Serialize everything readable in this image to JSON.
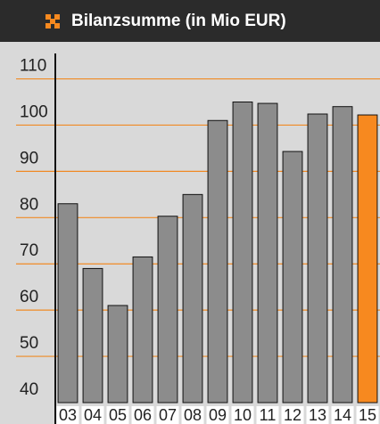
{
  "chart_data": {
    "type": "bar",
    "title": "Bilanzsumme (in Mio EUR)",
    "categories": [
      "03",
      "04",
      "05",
      "06",
      "07",
      "08",
      "09",
      "10",
      "11",
      "12",
      "13",
      "14",
      "15"
    ],
    "values": [
      83,
      69,
      61,
      71.5,
      80.3,
      85,
      101,
      105,
      104.7,
      94.3,
      102.4,
      104,
      102.2
    ],
    "colors": [
      "#8c8c8c",
      "#8c8c8c",
      "#8c8c8c",
      "#8c8c8c",
      "#8c8c8c",
      "#8c8c8c",
      "#8c8c8c",
      "#8c8c8c",
      "#8c8c8c",
      "#8c8c8c",
      "#8c8c8c",
      "#8c8c8c",
      "#f7891f"
    ],
    "ylim": [
      40,
      118
    ],
    "yticks": [
      40,
      50,
      60,
      70,
      80,
      90,
      100,
      110
    ],
    "grid": true,
    "grid_color": "#f08a24"
  }
}
